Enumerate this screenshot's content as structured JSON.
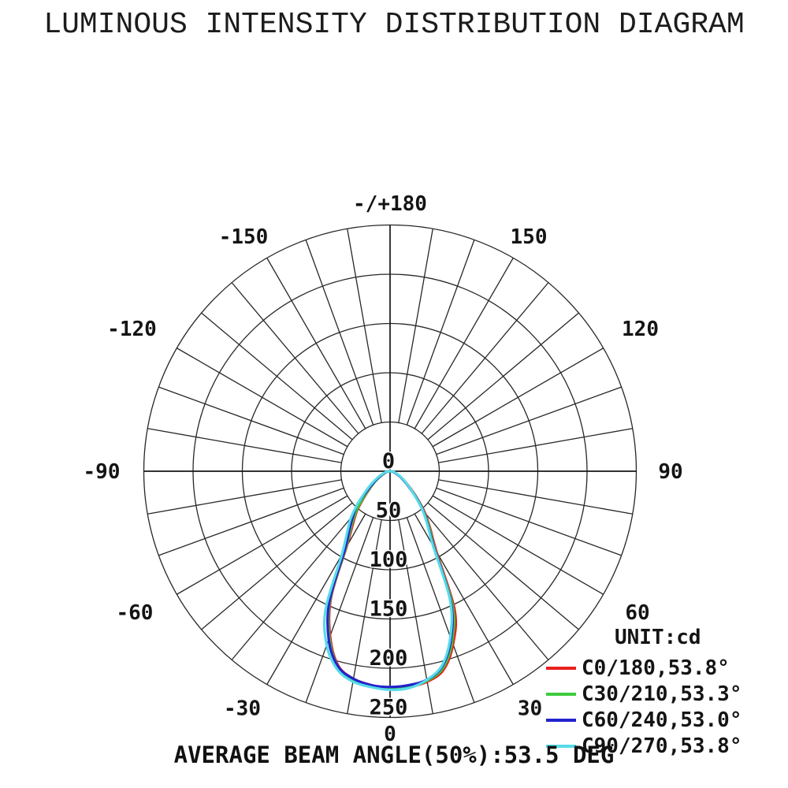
{
  "title": "LUMINOUS INTENSITY DISTRIBUTION DIAGRAM",
  "caption": "AVERAGE BEAM ANGLE(50%):53.5 DEG",
  "legend": {
    "unit": "UNIT:cd",
    "items": [
      {
        "label": "C0/180,53.8°",
        "color": "#e8201d"
      },
      {
        "label": "C30/210,53.3°",
        "color": "#3ecb3e"
      },
      {
        "label": "C60/240,53.0°",
        "color": "#2222cd"
      },
      {
        "label": "C90/270,53.8°",
        "color": "#57dbe8"
      }
    ]
  },
  "chart_data": {
    "type": "line",
    "coordinate_system": "polar",
    "title": "LUMINOUS INTENSITY DISTRIBUTION DIAGRAM",
    "unit": "cd",
    "grid": true,
    "radial_axis": {
      "ticks": [
        0,
        50,
        100,
        150,
        200,
        250
      ],
      "max": 250
    },
    "angle_ticks_deg": [
      -150,
      -120,
      -90,
      -60,
      -30,
      0,
      30,
      60,
      90,
      120,
      150,
      180
    ],
    "angle_label_top": "-/+180",
    "spoke_step_deg": 10,
    "average_beam_angle_50pct_deg": 53.5,
    "angles_deg": [
      -90,
      -85,
      -80,
      -75,
      -70,
      -65,
      -60,
      -55,
      -50,
      -45,
      -40,
      -35,
      -30,
      -25,
      -20,
      -15,
      -10,
      -5,
      0,
      5,
      10,
      15,
      20,
      25,
      30,
      35,
      40,
      45,
      50,
      55,
      60,
      65,
      70,
      75,
      80,
      85,
      90
    ],
    "series": [
      {
        "name": "C0/180",
        "beam_angle_deg": 53.8,
        "color": "#e8201d",
        "values": [
          0,
          2,
          3,
          5,
          6,
          9,
          13,
          19,
          26,
          37,
          52,
          66,
          88,
          142,
          178,
          204,
          214,
          218,
          221,
          220,
          217,
          209,
          187,
          155,
          94,
          71,
          55,
          39,
          27,
          19,
          13,
          9,
          6,
          5,
          3,
          2,
          0
        ]
      },
      {
        "name": "C30/210",
        "beam_angle_deg": 53.3,
        "color": "#3ecb3e",
        "values": [
          0,
          2,
          3,
          5,
          7,
          9,
          13,
          19,
          27,
          39,
          54,
          69,
          90,
          144,
          180,
          205,
          215,
          219,
          220,
          220,
          216,
          207,
          184,
          150,
          91,
          69,
          53,
          38,
          26,
          18,
          13,
          9,
          6,
          5,
          3,
          2,
          0
        ]
      },
      {
        "name": "C60/240",
        "beam_angle_deg": 53.0,
        "color": "#2222cd",
        "values": [
          0,
          2,
          4,
          5,
          7,
          10,
          15,
          21,
          30,
          46,
          58,
          72,
          92,
          146,
          182,
          205,
          214,
          218,
          219,
          218,
          215,
          205,
          181,
          146,
          89,
          67,
          52,
          37,
          25,
          18,
          13,
          9,
          6,
          5,
          3,
          2,
          0
        ]
      },
      {
        "name": "C90/270",
        "beam_angle_deg": 53.8,
        "color": "#57dbe8",
        "values": [
          0,
          3,
          4,
          6,
          8,
          12,
          17,
          24,
          33,
          46,
          62,
          76,
          98,
          155,
          188,
          208,
          217,
          220,
          222,
          221,
          215,
          204,
          179,
          144,
          87,
          66,
          51,
          36,
          26,
          19,
          14,
          10,
          7,
          5,
          4,
          2,
          0
        ]
      }
    ]
  }
}
